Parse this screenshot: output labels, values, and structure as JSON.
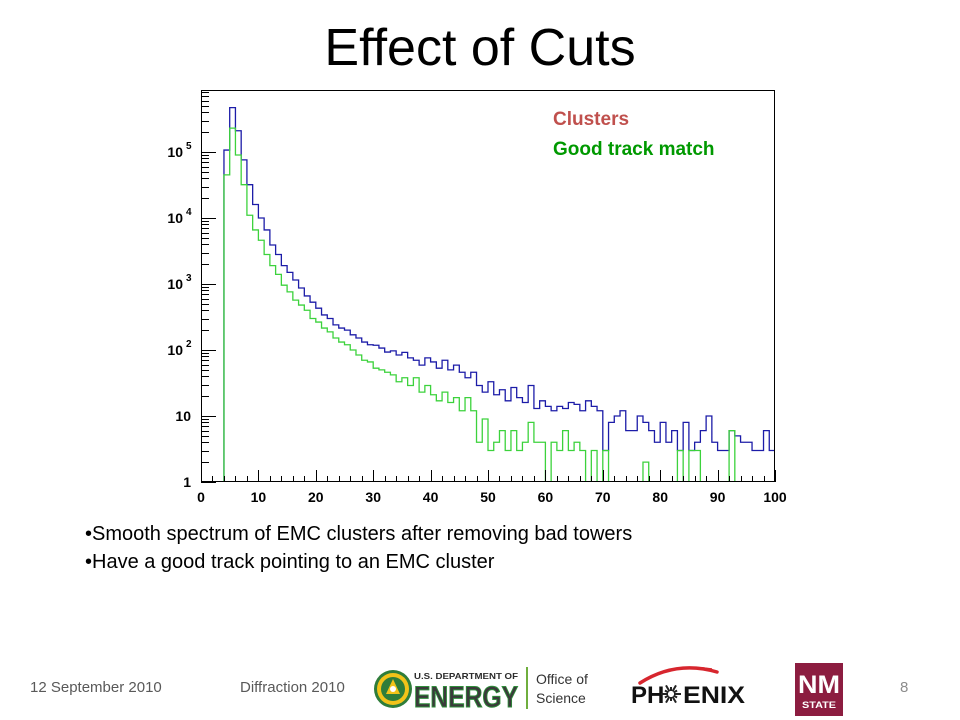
{
  "slide": {
    "title": "Effect of Cuts",
    "bullets": [
      "•Smooth spectrum of EMC clusters after removing bad towers",
      "•Have a good track pointing to an EMC cluster"
    ],
    "footer": {
      "date": "12 September 2010",
      "event": "Diffraction 2010",
      "page": "8"
    },
    "logos": {
      "doe": {
        "line1": "U.S. DEPARTMENT OF",
        "line2": "ENERGY",
        "office": "Office of",
        "science": "Science",
        "icon": "doe-seal-icon",
        "green": "#2f8f3a"
      },
      "phenix": {
        "left": "PH",
        "right": "ENIX",
        "icon": "phenix-sunburst-icon",
        "arc_color": "#d7262e"
      },
      "nmstate": {
        "top": "NM",
        "bottom": "STATE",
        "color": "#8c1d40"
      }
    }
  },
  "chart_data": {
    "type": "bar",
    "histtype": "step",
    "title": "",
    "xlabel": "",
    "ylabel": "",
    "xlim": [
      0,
      100
    ],
    "bin_width": 1,
    "yscale": "log",
    "ylim": [
      1,
      870000
    ],
    "grid": false,
    "xticks": [
      "0",
      "10",
      "20",
      "30",
      "40",
      "50",
      "60",
      "70",
      "80",
      "90",
      "100"
    ],
    "yticks": [
      {
        "base": "1",
        "exp": ""
      },
      {
        "base": "10",
        "exp": ""
      },
      {
        "base": "10",
        "exp": "2"
      },
      {
        "base": "10",
        "exp": "3"
      },
      {
        "base": "10",
        "exp": "4"
      },
      {
        "base": "10",
        "exp": "5"
      }
    ],
    "legend": {
      "position": "top-right",
      "text_colors": [
        "#c0504d",
        "#009900"
      ]
    },
    "series": [
      {
        "name": "Clusters",
        "color": "#1c1ca8",
        "values": [
          0,
          0,
          0,
          0,
          107000,
          470000,
          210000,
          76000,
          32000,
          16000,
          10000,
          6600,
          3900,
          2800,
          1900,
          1500,
          1150,
          870,
          660,
          530,
          430,
          340,
          300,
          240,
          215,
          200,
          170,
          152,
          132,
          120,
          118,
          107,
          93,
          97,
          84,
          92,
          76,
          70,
          59,
          76,
          66,
          53,
          70,
          50,
          59,
          46,
          38,
          46,
          29,
          23,
          33,
          21,
          25,
          17,
          27,
          19,
          16,
          29,
          13,
          17,
          14,
          12,
          14,
          13,
          16,
          15,
          12,
          17,
          14,
          12,
          3,
          8,
          10,
          12,
          6,
          6,
          10,
          8,
          6,
          4,
          8,
          4,
          6,
          3,
          8,
          3,
          4,
          6,
          10,
          4,
          3,
          3,
          6,
          5,
          4,
          4,
          3,
          3,
          6,
          3
        ]
      },
      {
        "name": "Good track match",
        "color": "#3cd23c",
        "values": [
          0,
          0,
          0,
          0,
          45000,
          230000,
          90000,
          32000,
          11000,
          6600,
          4600,
          2800,
          1900,
          1400,
          960,
          760,
          570,
          480,
          400,
          300,
          265,
          215,
          188,
          152,
          132,
          120,
          100,
          84,
          70,
          66,
          53,
          50,
          46,
          42,
          33,
          38,
          29,
          38,
          23,
          29,
          21,
          17,
          23,
          16,
          19,
          12,
          19,
          12,
          4,
          9,
          3,
          4,
          6,
          3,
          6,
          3,
          4,
          8,
          4,
          4,
          0,
          4,
          3,
          6,
          3,
          4,
          3,
          0,
          3,
          0,
          3,
          0,
          0,
          0,
          0,
          0,
          0,
          2,
          0,
          0,
          0,
          0,
          0,
          3,
          0,
          3,
          3,
          0,
          0,
          0,
          0,
          0,
          6,
          0,
          0,
          0,
          0,
          0,
          0,
          0
        ]
      }
    ]
  }
}
